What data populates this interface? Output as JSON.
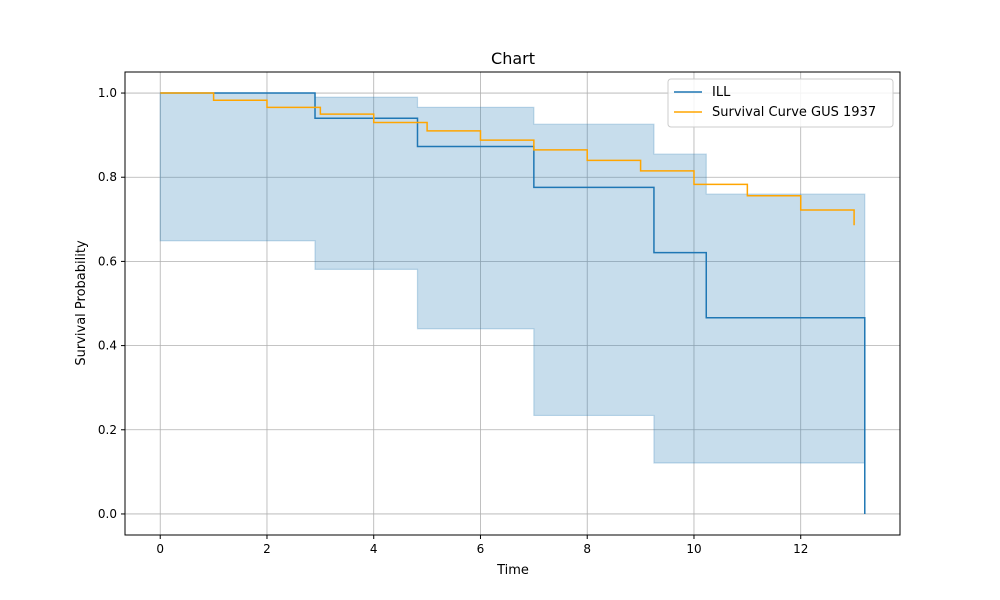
{
  "chart_data": {
    "type": "line",
    "title": "Chart",
    "xlabel": "Time",
    "ylabel": "Survival Probability",
    "xlim": [
      -0.66,
      13.86
    ],
    "ylim": [
      -0.05,
      1.05
    ],
    "xticks": [
      0,
      2,
      4,
      6,
      8,
      10,
      12
    ],
    "yticks": [
      0.0,
      0.2,
      0.4,
      0.6,
      0.8,
      1.0
    ],
    "ytick_labels": [
      "0.0",
      "0.2",
      "0.4",
      "0.6",
      "0.8",
      "1.0"
    ],
    "grid": true,
    "legend_position": "top-right",
    "series": [
      {
        "name": "ILL",
        "color": "#1f77b4",
        "step": "post",
        "x": [
          0,
          2.9,
          4.82,
          7.0,
          9.25,
          10.23,
          13.2,
          13.2
        ],
        "y": [
          1.0,
          0.94,
          0.873,
          0.776,
          0.621,
          0.466,
          0.466,
          0.0
        ],
        "ci": {
          "color": "#1f77b4",
          "x": [
            0,
            2.9,
            4.82,
            7.0,
            9.25,
            10.23,
            13.2
          ],
          "lower": [
            1.0,
            0.649,
            0.581,
            0.44,
            0.234,
            0.121,
            0.121
          ],
          "upper": [
            1.0,
            0.99,
            0.966,
            0.926,
            0.855,
            0.76,
            0.76
          ]
        }
      },
      {
        "name": "Survival Curve GUS 1937",
        "color": "#ffa500",
        "step": "post",
        "x": [
          0,
          1,
          2,
          3,
          4,
          5,
          6,
          7,
          8,
          9,
          10,
          11,
          12,
          13
        ],
        "y": [
          1.0,
          0.983,
          0.966,
          0.95,
          0.93,
          0.91,
          0.888,
          0.865,
          0.84,
          0.815,
          0.783,
          0.756,
          0.722,
          0.686
        ]
      }
    ]
  }
}
